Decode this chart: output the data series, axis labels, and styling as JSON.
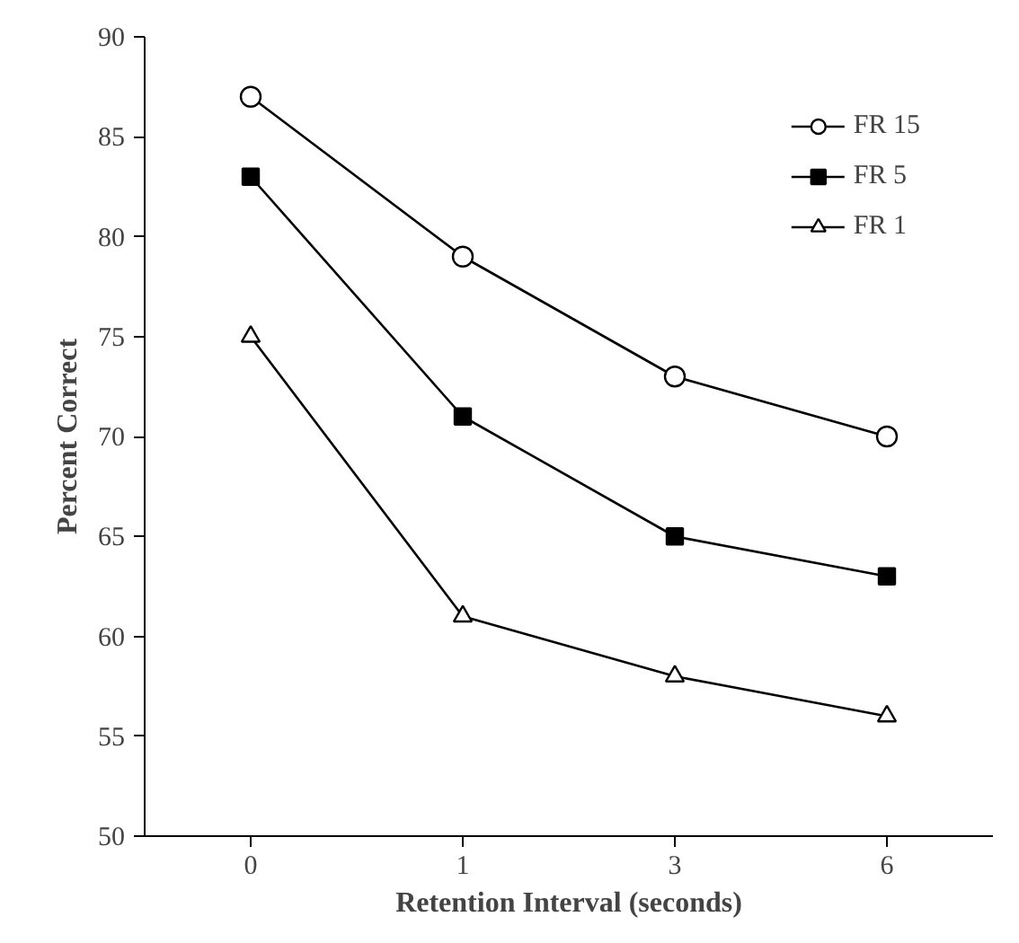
{
  "chart_data": {
    "type": "line",
    "xlabel": "Retention Interval (seconds)",
    "ylabel": "Percent Correct",
    "categories": [
      "0",
      "1",
      "3",
      "6"
    ],
    "ylim": [
      50,
      90
    ],
    "yticks": [
      50,
      55,
      60,
      65,
      70,
      75,
      80,
      85,
      90
    ],
    "grid": false,
    "legend": "top right",
    "series": [
      {
        "name": "FR 15",
        "color": "#000000",
        "marker": "circle",
        "values": [
          87,
          79,
          73,
          70
        ]
      },
      {
        "name": "FR 5",
        "color": "#000000",
        "marker": "square",
        "values": [
          83,
          71,
          65,
          63
        ]
      },
      {
        "name": "FR 1",
        "color": "#000000",
        "marker": "triangle",
        "values": [
          75,
          61,
          58,
          56
        ]
      }
    ]
  }
}
